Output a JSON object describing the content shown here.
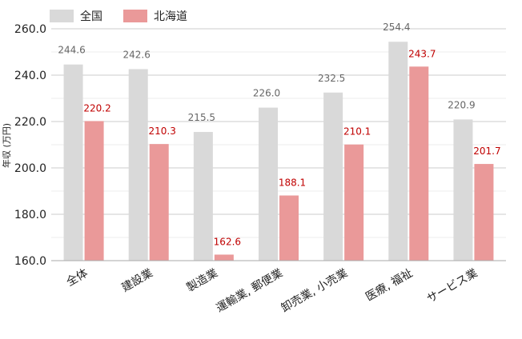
{
  "chart_data": {
    "type": "bar",
    "title": "",
    "xlabel": "",
    "ylabel": "年収 (万円)",
    "ylim": [
      160,
      260
    ],
    "yticks": [
      "160.0",
      "180.0",
      "200.0",
      "220.0",
      "240.0",
      "260.0"
    ],
    "grid": true,
    "legend_position": "top-left",
    "categories": [
      "全体",
      "建設業",
      "製造業",
      "運輸業, 郵便業",
      "卸売業, 小売業",
      "医療, 福祉",
      "サービス業"
    ],
    "series": [
      {
        "name": "全国",
        "color": "#d9d9d9",
        "label_color": "#666666",
        "values": [
          244.6,
          242.6,
          215.5,
          226.0,
          232.5,
          254.4,
          220.9
        ]
      },
      {
        "name": "北海道",
        "color": "#ea9999",
        "label_color": "#c00000",
        "values": [
          220.2,
          210.3,
          162.6,
          188.1,
          210.1,
          243.7,
          201.7
        ]
      }
    ]
  }
}
